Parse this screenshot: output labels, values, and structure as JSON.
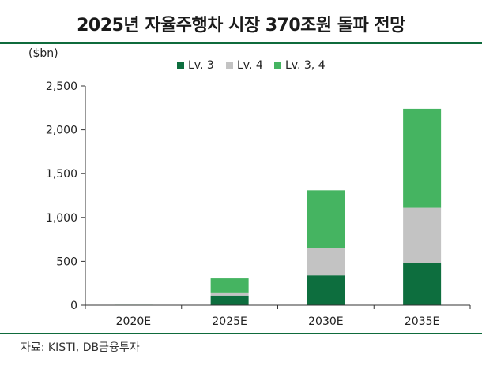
{
  "title": "2025년 자율주행차 시장 370조원 돌파 전망",
  "unit_label": "($bn)",
  "source": "자료: KISTI, DB금융투자",
  "colors": {
    "accent_line": "#0f6b3c",
    "lv3": "#0d6e3e",
    "lv4": "#c3c3c3",
    "lv34": "#45b461",
    "axis": "#333333"
  },
  "chart_data": {
    "type": "bar",
    "stacked": true,
    "categories": [
      "2020E",
      "2025E",
      "2030E",
      "2035E"
    ],
    "series": [
      {
        "name": "Lv. 3",
        "values": [
          2,
          110,
          340,
          480
        ]
      },
      {
        "name": "Lv. 4",
        "values": [
          1,
          35,
          310,
          630
        ]
      },
      {
        "name": "Lv. 3, 4",
        "values": [
          2,
          160,
          660,
          1130
        ]
      }
    ],
    "ylabel": "($bn)",
    "ylim": [
      0,
      2500
    ],
    "yticks": [
      0,
      500,
      1000,
      1500,
      2000,
      2500
    ],
    "ytick_labels": [
      "0",
      "500",
      "1,000",
      "1,500",
      "2,000",
      "2,500"
    ],
    "grid": false,
    "legend_position": "top-center"
  }
}
